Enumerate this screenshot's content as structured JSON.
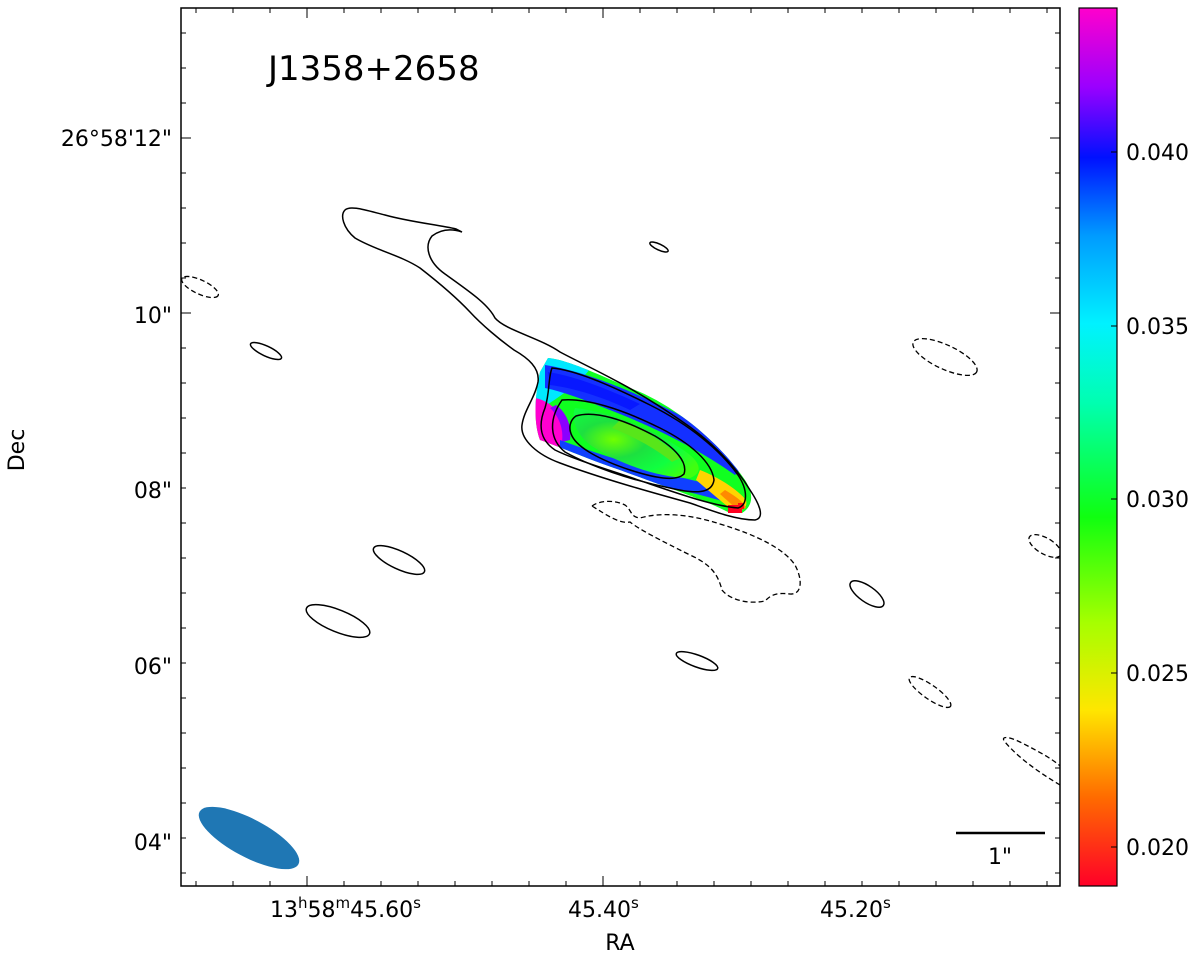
{
  "chart_data": {
    "type": "heatmap",
    "title": "J1358+2658",
    "xlabel": "RA",
    "ylabel": "Dec",
    "x_ticks": [
      {
        "label": "13",
        "sup_h": "h",
        "mid": "58",
        "sup_m": "m",
        "tail": "45.60",
        "sup_s": "s"
      },
      {
        "label": "45.40",
        "sup_s": "s"
      },
      {
        "label": "45.20",
        "sup_s": "s"
      }
    ],
    "y_ticks": [
      "26°58'12\"",
      "10\"",
      "08\"",
      "06\"",
      "04\""
    ],
    "colorbar": {
      "ticks": [
        "0.020",
        "0.025",
        "0.030",
        "0.035",
        "0.040"
      ],
      "range": [
        0.0188,
        0.0441
      ],
      "colormap": "gist_rainbow_r"
    },
    "scalebar_label": "1\"",
    "beam_color": "#1f77b4",
    "contours": {
      "positive_style": "solid",
      "negative_style": "dashed",
      "levels": 4
    },
    "map_values_note_free": [
      {
        "region": "core",
        "value": 0.029
      },
      {
        "region": "south-east tip",
        "value": 0.02
      }
    ],
    "colors": {
      "frame": "#000000",
      "contour": "#000000"
    }
  }
}
